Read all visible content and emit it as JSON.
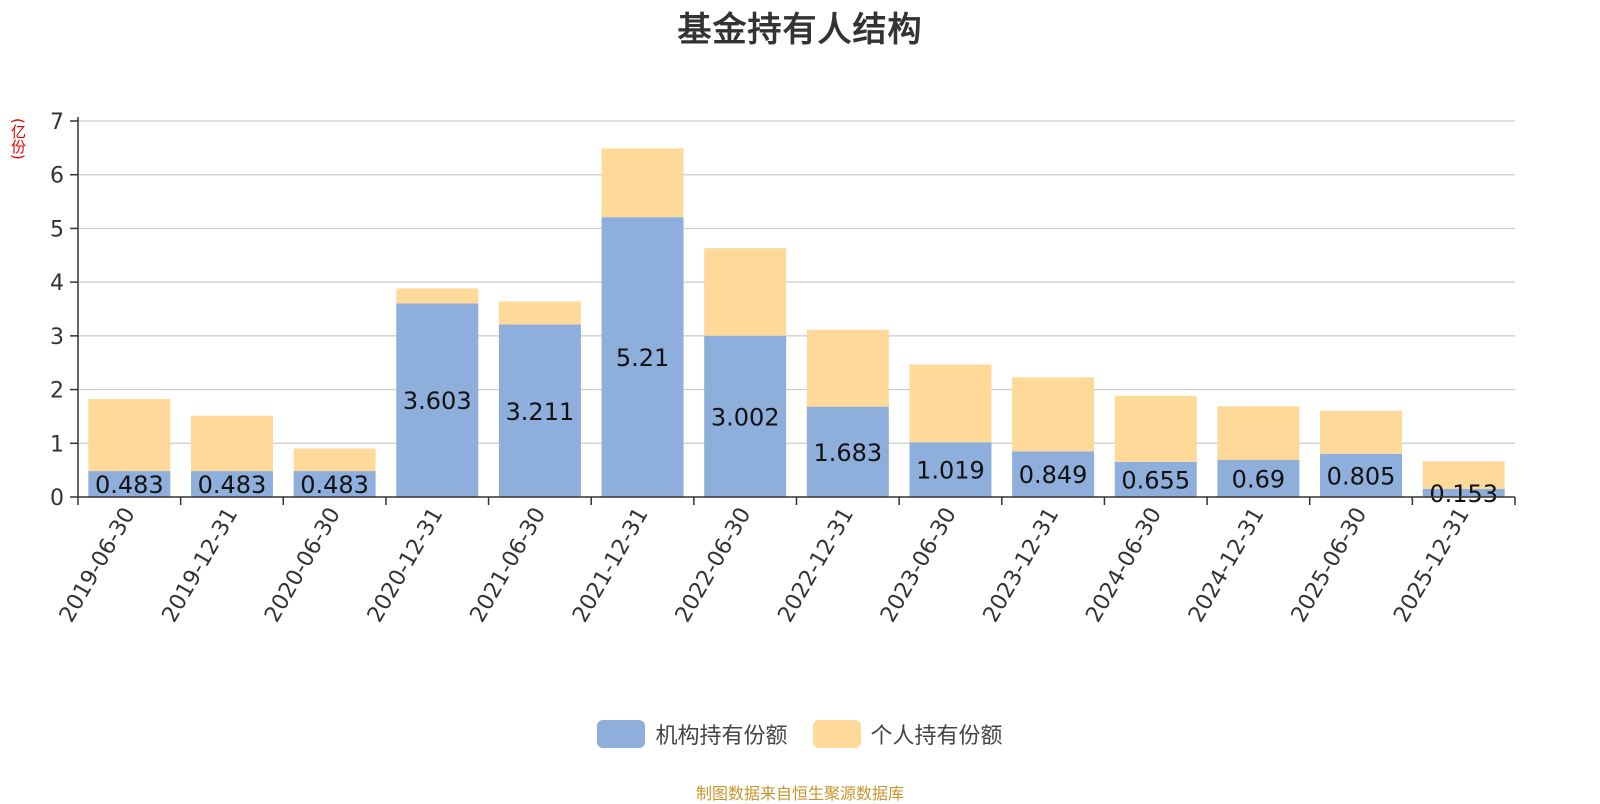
{
  "chart_data": {
    "type": "bar",
    "stacked": true,
    "title": "基金持有人结构",
    "unit_label": "(亿份)",
    "ylim": [
      0,
      7
    ],
    "yticks": [
      0,
      1,
      2,
      3,
      4,
      5,
      6,
      7
    ],
    "grid": true,
    "legend_position": "bottom",
    "categories": [
      "2019-06-30",
      "2019-12-31",
      "2020-06-30",
      "2020-12-31",
      "2021-06-30",
      "2021-12-31",
      "2022-06-30",
      "2022-12-31",
      "2023-06-30",
      "2023-12-31",
      "2024-06-30",
      "2024-12-31",
      "2025-06-30",
      "2025-12-31"
    ],
    "series": [
      {
        "name": "机构持有份额",
        "color": "#8eaedb",
        "values": [
          0.483,
          0.483,
          0.483,
          3.603,
          3.211,
          5.21,
          3.002,
          1.683,
          1.019,
          0.849,
          0.655,
          0.69,
          0.805,
          0.153
        ],
        "labels": [
          "0.483",
          "0.483",
          "0.483",
          "3.603",
          "3.211",
          "5.21",
          "3.002",
          "1.683",
          "1.019",
          "0.849",
          "0.655",
          "0.69",
          "0.805",
          "0.153"
        ]
      },
      {
        "name": "个人持有份额",
        "color": "#ffd999",
        "values": [
          1.34,
          1.03,
          0.42,
          0.28,
          0.43,
          1.28,
          1.63,
          1.43,
          1.45,
          1.38,
          1.23,
          1.0,
          0.8,
          0.51
        ]
      }
    ]
  },
  "footer": "制图数据来自恒生聚源数据库"
}
